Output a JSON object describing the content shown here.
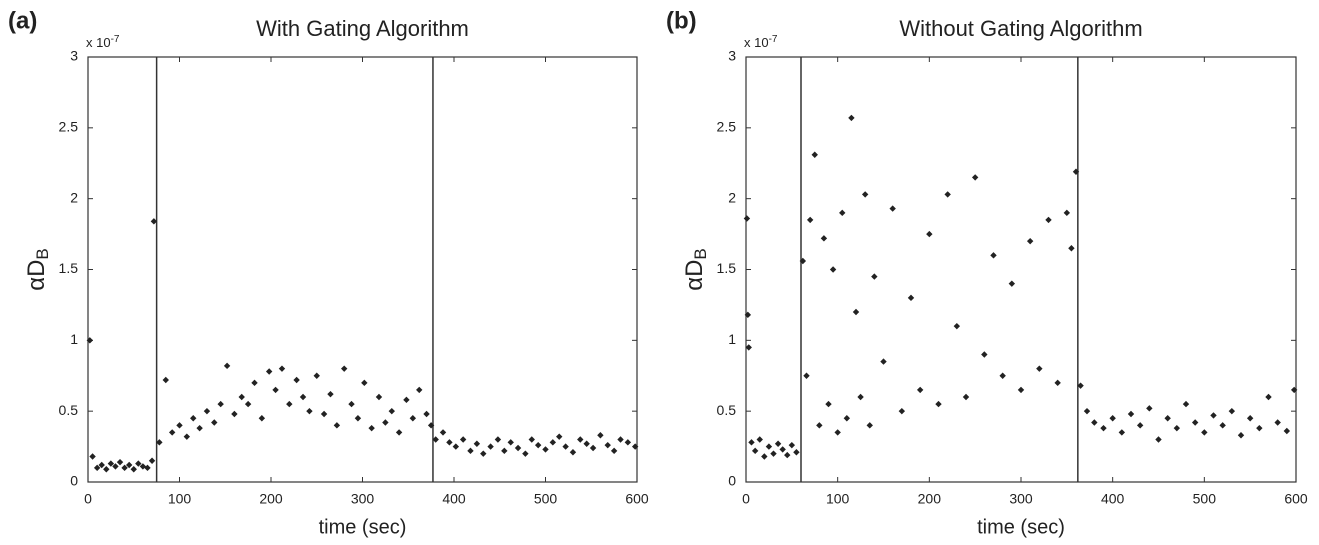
{
  "chart_data": [
    {
      "type": "scatter",
      "panel_label": "(a)",
      "title": "With Gating Algorithm",
      "xlabel": "time (sec)",
      "ylabel": "αD",
      "ylabel_sub": "B",
      "y_multiplier": "x 10",
      "y_multiplier_exp": "-7",
      "color": "#222222",
      "xlim": [
        0,
        600
      ],
      "xticks": [
        0,
        100,
        200,
        300,
        400,
        500,
        600
      ],
      "ylim": [
        0,
        3
      ],
      "yticks": [
        0,
        0.5,
        1,
        1.5,
        2,
        2.5,
        3
      ],
      "vlines": [
        75,
        377
      ],
      "x": [
        2,
        5,
        10,
        15,
        20,
        25,
        30,
        35,
        40,
        45,
        50,
        55,
        60,
        65,
        70,
        72,
        78,
        85,
        92,
        100,
        108,
        115,
        122,
        130,
        138,
        145,
        152,
        160,
        168,
        175,
        182,
        190,
        198,
        205,
        212,
        220,
        228,
        235,
        242,
        250,
        258,
        265,
        272,
        280,
        288,
        295,
        302,
        310,
        318,
        325,
        332,
        340,
        348,
        355,
        362,
        370,
        375,
        380,
        388,
        395,
        402,
        410,
        418,
        425,
        432,
        440,
        448,
        455,
        462,
        470,
        478,
        485,
        492,
        500,
        508,
        515,
        522,
        530,
        538,
        545,
        552,
        560,
        568,
        575,
        582,
        590,
        598
      ],
      "values": [
        1.0,
        0.18,
        0.1,
        0.12,
        0.09,
        0.13,
        0.11,
        0.14,
        0.1,
        0.12,
        0.09,
        0.13,
        0.11,
        0.1,
        0.15,
        1.84,
        0.28,
        0.72,
        0.35,
        0.4,
        0.32,
        0.45,
        0.38,
        0.5,
        0.42,
        0.55,
        0.82,
        0.48,
        0.6,
        0.55,
        0.7,
        0.45,
        0.78,
        0.65,
        0.8,
        0.55,
        0.72,
        0.6,
        0.5,
        0.75,
        0.48,
        0.62,
        0.4,
        0.8,
        0.55,
        0.45,
        0.7,
        0.38,
        0.6,
        0.42,
        0.5,
        0.35,
        0.58,
        0.45,
        0.65,
        0.48,
        0.4,
        0.3,
        0.35,
        0.28,
        0.25,
        0.3,
        0.22,
        0.27,
        0.2,
        0.25,
        0.3,
        0.22,
        0.28,
        0.24,
        0.2,
        0.3,
        0.26,
        0.23,
        0.28,
        0.32,
        0.25,
        0.21,
        0.3,
        0.27,
        0.24,
        0.33,
        0.26,
        0.22,
        0.3,
        0.28,
        0.25
      ]
    },
    {
      "type": "scatter",
      "panel_label": "(b)",
      "title": "Without Gating Algorithm",
      "xlabel": "time (sec)",
      "ylabel": "αD",
      "ylabel_sub": "B",
      "y_multiplier": "x 10",
      "y_multiplier_exp": "-7",
      "color": "#222222",
      "xlim": [
        0,
        600
      ],
      "xticks": [
        0,
        100,
        200,
        300,
        400,
        500,
        600
      ],
      "ylim": [
        0,
        3
      ],
      "yticks": [
        0,
        0.5,
        1,
        1.5,
        2,
        2.5,
        3
      ],
      "vlines": [
        60,
        362
      ],
      "x": [
        1,
        2,
        3,
        6,
        10,
        15,
        20,
        25,
        30,
        35,
        40,
        45,
        50,
        55,
        62,
        66,
        70,
        75,
        80,
        85,
        90,
        95,
        100,
        105,
        110,
        115,
        120,
        125,
        130,
        135,
        140,
        150,
        160,
        170,
        180,
        190,
        200,
        210,
        220,
        230,
        240,
        250,
        260,
        270,
        280,
        290,
        300,
        310,
        320,
        330,
        340,
        350,
        355,
        360,
        365,
        372,
        380,
        390,
        400,
        410,
        420,
        430,
        440,
        450,
        460,
        470,
        480,
        490,
        500,
        510,
        520,
        530,
        540,
        550,
        560,
        570,
        580,
        590,
        598
      ],
      "values": [
        1.86,
        1.18,
        0.95,
        0.28,
        0.22,
        0.3,
        0.18,
        0.25,
        0.2,
        0.27,
        0.23,
        0.19,
        0.26,
        0.21,
        1.56,
        0.75,
        1.85,
        2.31,
        0.4,
        1.72,
        0.55,
        1.5,
        0.35,
        1.9,
        0.45,
        2.57,
        1.2,
        0.6,
        2.03,
        0.4,
        1.45,
        0.85,
        1.93,
        0.5,
        1.3,
        0.65,
        1.75,
        0.55,
        2.03,
        1.1,
        0.6,
        2.15,
        0.9,
        1.6,
        0.75,
        1.4,
        0.65,
        1.7,
        0.8,
        1.85,
        0.7,
        1.9,
        1.65,
        2.19,
        0.68,
        0.5,
        0.42,
        0.38,
        0.45,
        0.35,
        0.48,
        0.4,
        0.52,
        0.3,
        0.45,
        0.38,
        0.55,
        0.42,
        0.35,
        0.47,
        0.4,
        0.5,
        0.33,
        0.45,
        0.38,
        0.6,
        0.42,
        0.36,
        0.65
      ]
    }
  ]
}
